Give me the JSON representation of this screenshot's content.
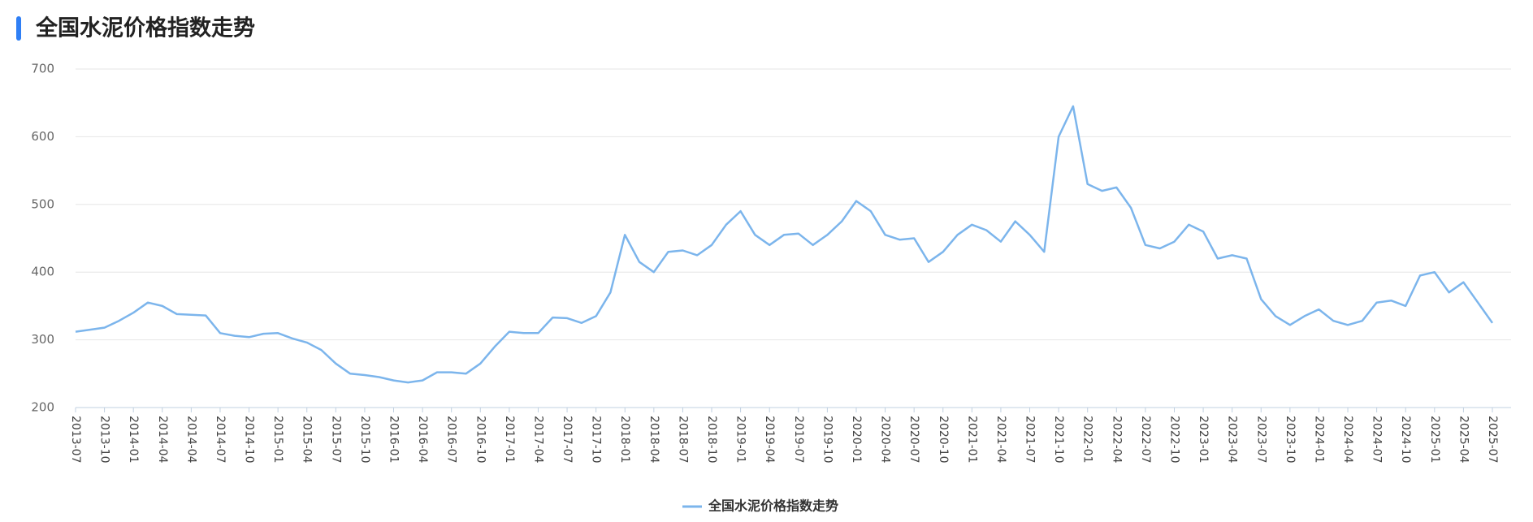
{
  "chart_data": {
    "type": "line",
    "title": "全国水泥价格指数走势",
    "categories": [
      "2013-07",
      null,
      "2013-10",
      null,
      "2014-01",
      null,
      "2014-04",
      null,
      "2014-04",
      null,
      "2014-07",
      null,
      "2014-10",
      null,
      "2015-01",
      null,
      "2015-04",
      null,
      "2015-07",
      null,
      "2015-10",
      null,
      "2016-01",
      null,
      "2016-04",
      null,
      "2016-07",
      null,
      "2016-10",
      null,
      "2017-01",
      null,
      "2017-04",
      null,
      "2017-07",
      null,
      "2017-10",
      null,
      "2018-01",
      null,
      "2018-04",
      null,
      "2018-07",
      null,
      "2018-10",
      null,
      "2019-01",
      null,
      "2019-04",
      null,
      "2019-07",
      null,
      "2019-10",
      null,
      "2020-01",
      null,
      "2020-04",
      null,
      "2020-07",
      null,
      "2020-10",
      null,
      "2021-01",
      null,
      "2021-04",
      null,
      "2021-07",
      null,
      "2021-10",
      null,
      "2022-01",
      null,
      "2022-04",
      null,
      "2022-07",
      null,
      "2022-10",
      null,
      "2023-01",
      null,
      "2023-04",
      null,
      "2023-07",
      null,
      "2023-10",
      null,
      "2024-01",
      null,
      "2024-04",
      null,
      "2024-07",
      null,
      "2024-10",
      null,
      "2025-01",
      null,
      "2025-04",
      null,
      "2025-07"
    ],
    "series": [
      {
        "name": "全国水泥价格指数走势",
        "color": "#7cb5ec",
        "values": [
          312,
          315,
          318,
          328,
          340,
          355,
          350,
          338,
          337,
          336,
          310,
          306,
          304,
          309,
          310,
          302,
          296,
          285,
          265,
          250,
          248,
          245,
          240,
          237,
          240,
          252,
          252,
          250,
          265,
          290,
          312,
          310,
          310,
          333,
          332,
          325,
          335,
          370,
          455,
          415,
          400,
          430,
          432,
          425,
          440,
          470,
          490,
          455,
          440,
          455,
          457,
          440,
          455,
          475,
          505,
          490,
          455,
          448,
          450,
          415,
          430,
          455,
          470,
          462,
          445,
          475,
          455,
          430,
          600,
          645,
          530,
          520,
          525,
          495,
          440,
          435,
          445,
          470,
          460,
          420,
          425,
          420,
          360,
          335,
          322,
          335,
          345,
          328,
          322,
          328,
          355,
          358,
          350,
          395,
          400,
          370,
          385,
          355,
          325
        ]
      }
    ],
    "ylim": [
      200,
      700
    ],
    "yticks": [
      200,
      300,
      400,
      500,
      600,
      700
    ],
    "grid": true,
    "legend": "bottom"
  }
}
